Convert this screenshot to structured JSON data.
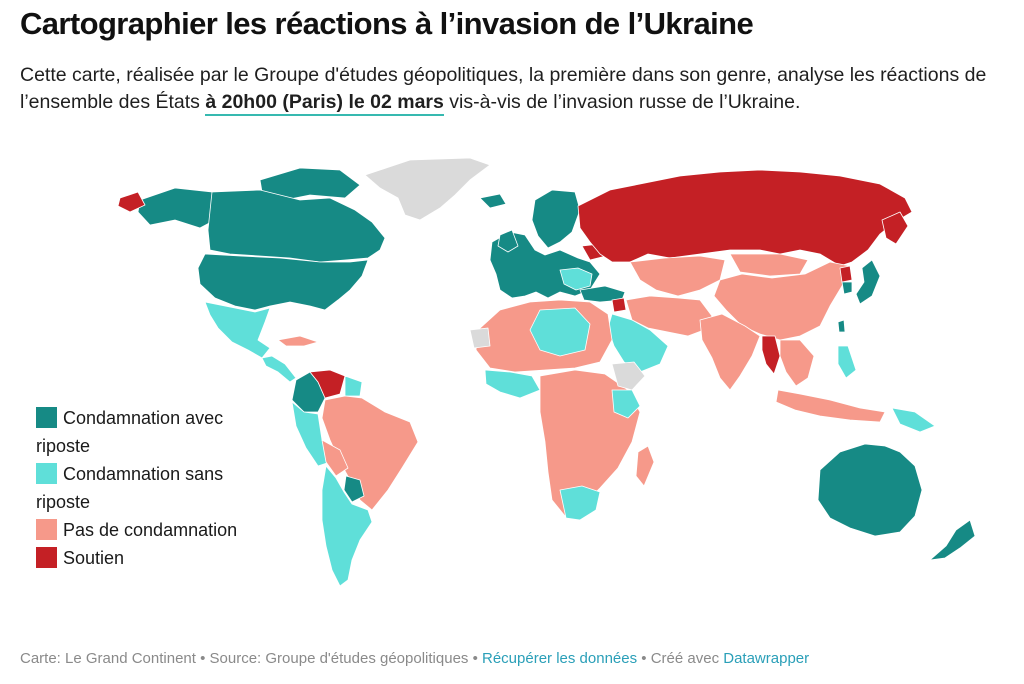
{
  "header": {
    "title": "Cartographier les réactions à l’invasion de l’Ukraine",
    "intro_before": "Cette carte, réalisée par le Groupe d'études géopolitiques, la première dans son genre, analyse les réactions de l’ensemble des États ",
    "intro_date": "à 20h00 (Paris) le 02 mars",
    "intro_after": " vis-à-vis de l’invasion russe de l’Ukraine."
  },
  "colors": {
    "condamnation_avec_riposte": "#168a85",
    "condamnation_sans_riposte": "#5fdfd9",
    "pas_de_condamnation": "#f6998a",
    "soutien": "#c42025",
    "no_data": "#dadada",
    "accent_underline": "#36b9b0",
    "link": "#2a9fb8"
  },
  "legend": {
    "items": [
      {
        "label": "Condamnation avec riposte",
        "color": "#168a85"
      },
      {
        "label": "Condamnation sans riposte",
        "color": "#5fdfd9"
      },
      {
        "label": "Pas de condamnation",
        "color": "#f6998a"
      },
      {
        "label": "Soutien",
        "color": "#c42025"
      }
    ]
  },
  "footer": {
    "map_credit": "Carte: Le Grand Continent",
    "separator": " • ",
    "source": "Source: Groupe d'études géopolitiques",
    "download_link": "Récupérer les données",
    "created_with": "Créé avec ",
    "tool_link": "Datawrapper"
  }
}
